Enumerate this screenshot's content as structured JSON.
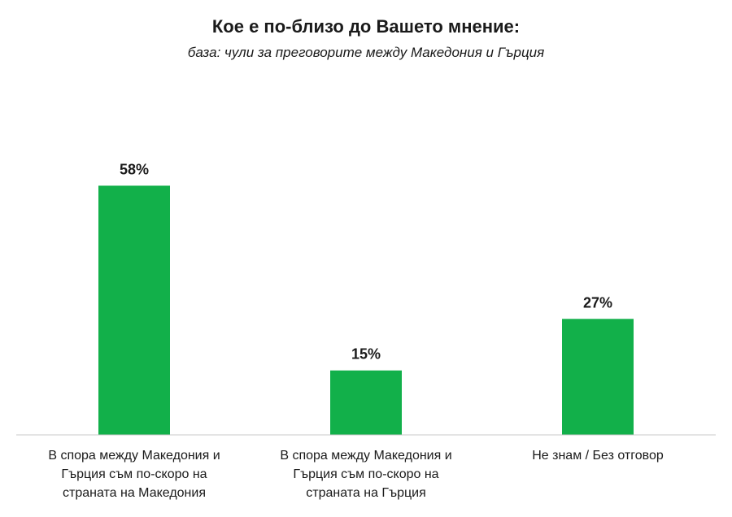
{
  "chart_data": {
    "type": "bar",
    "title": "Кое е по-близо до Вашето мнение:",
    "subtitle": "база: чули за преговорите между Македония и Гърция",
    "categories": [
      "В спора между Македония и Гърция съм по-скоро на страната на Македония",
      "В спора между Македония и Гърция съм по-скоро на страната на Гърция",
      "Не знам / Без отговор"
    ],
    "category_lines": [
      [
        "В спора между Македония и",
        "Гърция съм по-скоро на",
        "страната на Македония"
      ],
      [
        "В спора между Македония и",
        "Гърция съм по-скоро на",
        "страната на Гърция"
      ],
      [
        "Не знам / Без отговор"
      ]
    ],
    "values": [
      58,
      15,
      27
    ],
    "value_labels": [
      "58%",
      "15%",
      "27%"
    ],
    "ylim": [
      0,
      70
    ],
    "grid": false,
    "legend": "none",
    "colors": {
      "bar": "#12b04a",
      "axis": "#c8c8c8"
    }
  }
}
